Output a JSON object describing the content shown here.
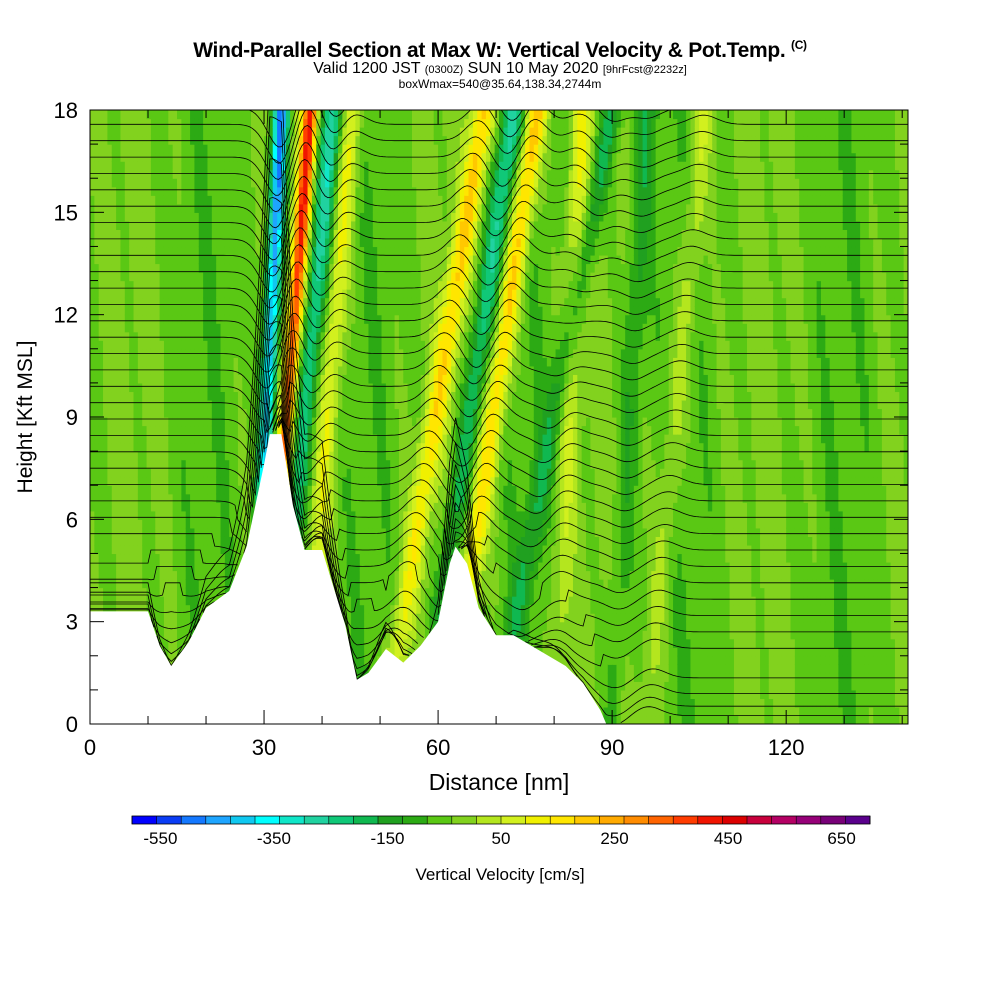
{
  "header": {
    "title_main": "Wind-Parallel Section at Max W: Vertical Velocity & Pot.Temp.",
    "title_tag": "(C)",
    "valid_a": "Valid 1200 JST ",
    "valid_b": "(0300Z)",
    "valid_c": " SUN 10 May 2020 ",
    "valid_d": "[9hrFcst@2232z]",
    "box_info": "boxWmax=540@35.64,138.34,2744m"
  },
  "chart_data": {
    "type": "heatmap",
    "xlabel": "Distance [nm]",
    "ylabel": "Height [Kft MSL]",
    "xlim": [
      0,
      141
    ],
    "ylim": [
      0,
      18
    ],
    "x_ticks": [
      0,
      30,
      60,
      90,
      120
    ],
    "y_ticks": [
      0,
      3,
      6,
      9,
      12,
      15,
      18
    ],
    "colorbar": {
      "label": "Vertical Velocity [cm/s]",
      "tick_labels": [
        "-550",
        "-350",
        "-150",
        "50",
        "250",
        "450",
        "650"
      ],
      "tick_values": [
        -550,
        -350,
        -150,
        50,
        250,
        450,
        650
      ],
      "range": [
        -600,
        700
      ],
      "bin_width": 50,
      "colors": [
        "#0000ff",
        "#0a3cf5",
        "#1478ff",
        "#1ea5ff",
        "#10c8f0",
        "#00ffff",
        "#10e6c8",
        "#20d2a0",
        "#10c878",
        "#10b850",
        "#20a020",
        "#2caa14",
        "#5ac814",
        "#82d21e",
        "#b4e61e",
        "#d2f01e",
        "#f0f000",
        "#ffe600",
        "#ffc800",
        "#ffaa00",
        "#ff8c00",
        "#ff6400",
        "#ff3c00",
        "#f01400",
        "#dc0000",
        "#c8003c",
        "#b40064",
        "#960078",
        "#780078",
        "#5a008c"
      ]
    },
    "terrain_profile": [
      [
        0,
        3.3
      ],
      [
        10,
        3.3
      ],
      [
        12,
        2.3
      ],
      [
        14,
        1.7
      ],
      [
        17,
        2.4
      ],
      [
        20,
        3.4
      ],
      [
        24,
        3.9
      ],
      [
        27,
        5.2
      ],
      [
        30,
        7.6
      ],
      [
        31,
        8.5
      ],
      [
        33,
        8.5
      ],
      [
        35,
        6.4
      ],
      [
        37,
        5.1
      ],
      [
        40,
        5.1
      ],
      [
        42,
        4.0
      ],
      [
        44,
        2.9
      ],
      [
        46,
        1.3
      ],
      [
        48,
        1.5
      ],
      [
        51,
        2.2
      ],
      [
        54,
        1.8
      ],
      [
        57,
        2.3
      ],
      [
        60,
        3.0
      ],
      [
        62,
        4.7
      ],
      [
        63,
        5.2
      ],
      [
        65,
        4.7
      ],
      [
        67,
        3.4
      ],
      [
        70,
        2.6
      ],
      [
        73,
        2.6
      ],
      [
        76,
        2.3
      ],
      [
        79,
        2.0
      ],
      [
        82,
        1.7
      ],
      [
        85,
        1.2
      ],
      [
        88,
        0.4
      ],
      [
        89,
        0
      ],
      [
        141,
        0
      ]
    ],
    "updraft_bands": [
      {
        "x_top": 38,
        "x_bottom": 30,
        "w_peak": 540
      },
      {
        "x_top": 45,
        "x_bottom": 37,
        "w_peak": 200
      },
      {
        "x_top": 68,
        "x_bottom": 51,
        "w_peak": 280
      },
      {
        "x_top": 77,
        "x_bottom": 62,
        "w_peak": 320
      },
      {
        "x_top": 85,
        "x_bottom": 80,
        "w_peak": 150
      },
      {
        "x_top": 106,
        "x_bottom": 96,
        "w_peak": 120
      }
    ],
    "downdraft_bands": [
      {
        "x_top": 33,
        "x_bottom": 28,
        "w_peak": -550
      },
      {
        "x_top": 42,
        "x_bottom": 32,
        "w_peak": -300
      },
      {
        "x_top": 73,
        "x_bottom": 58,
        "w_peak": -250
      },
      {
        "x_top": 90,
        "x_bottom": 70,
        "w_peak": -180
      },
      {
        "x_top": 96,
        "x_bottom": 90,
        "w_peak": -130
      }
    ]
  }
}
